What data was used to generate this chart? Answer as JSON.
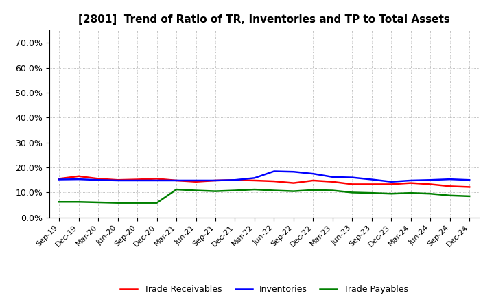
{
  "title": "[2801]  Trend of Ratio of TR, Inventories and TP to Total Assets",
  "x_labels": [
    "Sep-19",
    "Dec-19",
    "Mar-20",
    "Jun-20",
    "Sep-20",
    "Dec-20",
    "Mar-21",
    "Jun-21",
    "Sep-21",
    "Dec-21",
    "Mar-22",
    "Jun-22",
    "Sep-22",
    "Dec-22",
    "Mar-23",
    "Jun-23",
    "Sep-23",
    "Dec-23",
    "Mar-24",
    "Jun-24",
    "Sep-24",
    "Dec-24"
  ],
  "trade_receivables": [
    0.155,
    0.165,
    0.155,
    0.15,
    0.152,
    0.155,
    0.148,
    0.143,
    0.148,
    0.15,
    0.148,
    0.145,
    0.138,
    0.148,
    0.143,
    0.133,
    0.133,
    0.133,
    0.138,
    0.133,
    0.125,
    0.122
  ],
  "inventories": [
    0.152,
    0.153,
    0.15,
    0.148,
    0.148,
    0.148,
    0.148,
    0.148,
    0.148,
    0.15,
    0.158,
    0.185,
    0.183,
    0.175,
    0.162,
    0.16,
    0.152,
    0.143,
    0.148,
    0.15,
    0.153,
    0.15
  ],
  "trade_payables": [
    0.062,
    0.062,
    0.06,
    0.058,
    0.058,
    0.058,
    0.112,
    0.108,
    0.105,
    0.108,
    0.112,
    0.108,
    0.105,
    0.11,
    0.108,
    0.1,
    0.098,
    0.095,
    0.098,
    0.095,
    0.088,
    0.085
  ],
  "colors": {
    "trade_receivables": "#ff0000",
    "inventories": "#0000ff",
    "trade_payables": "#008000"
  },
  "ylim": [
    0.0,
    0.75
  ],
  "yticks": [
    0.0,
    0.1,
    0.2,
    0.3,
    0.4,
    0.5,
    0.6,
    0.7
  ],
  "legend_labels": [
    "Trade Receivables",
    "Inventories",
    "Trade Payables"
  ],
  "background_color": "#ffffff",
  "grid_color": "#aaaaaa",
  "title_fontsize": 11,
  "tick_fontsize": 8,
  "linewidth": 1.8
}
